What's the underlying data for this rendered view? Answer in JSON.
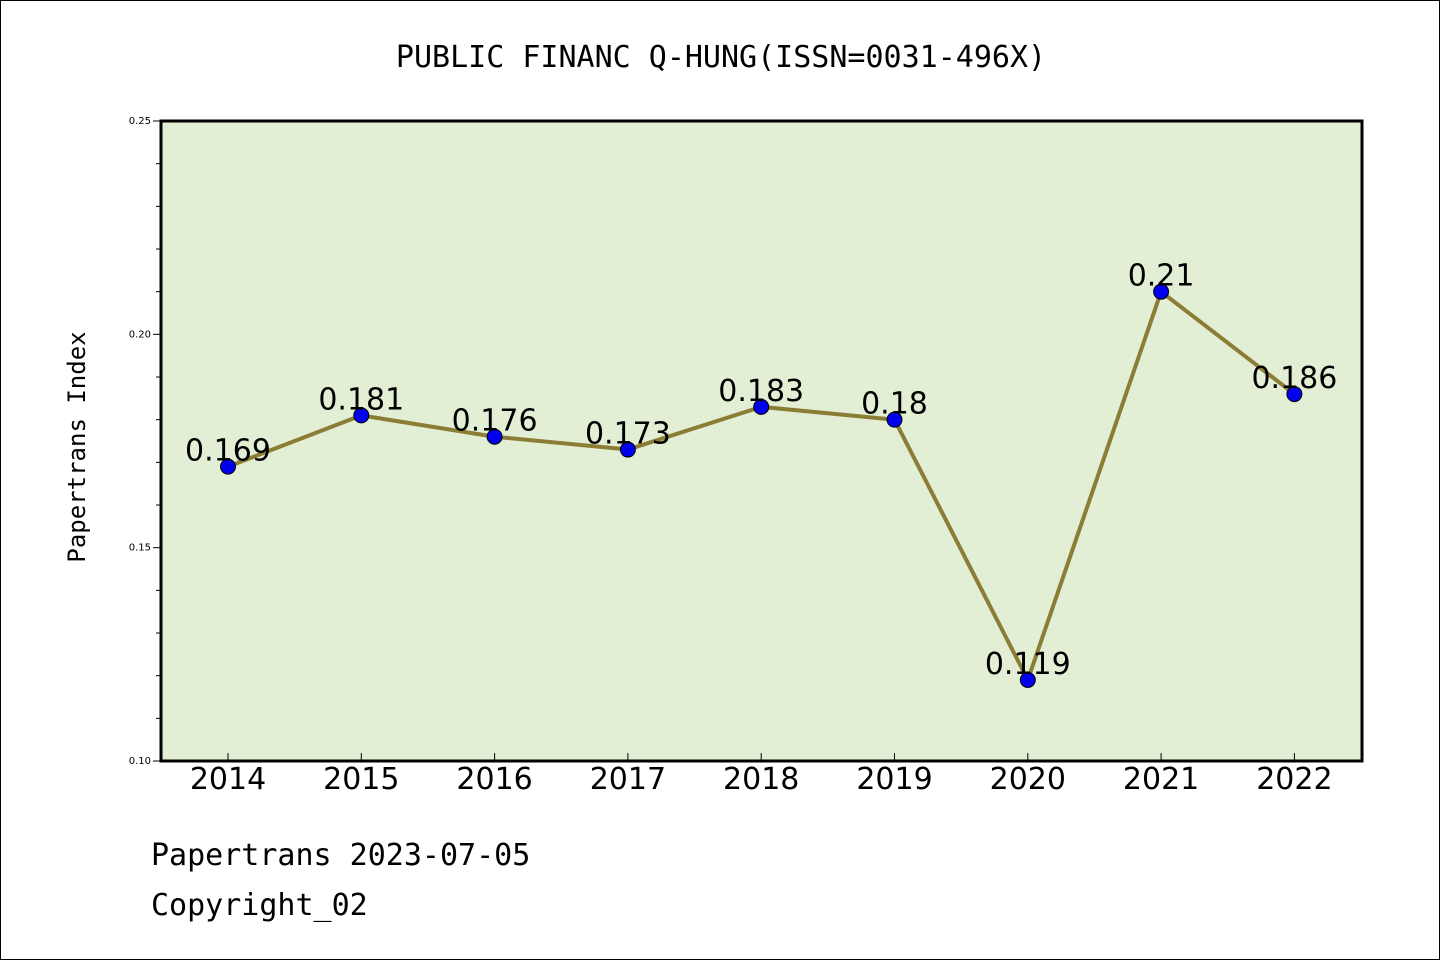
{
  "chart_data": {
    "type": "line",
    "title": "PUBLIC FINANC Q-HUNG(ISSN=0031-496X)",
    "ylabel": "Papertrans Index",
    "xlabel": "",
    "categories": [
      "2014",
      "2015",
      "2016",
      "2017",
      "2018",
      "2019",
      "2020",
      "2021",
      "2022"
    ],
    "values": [
      0.169,
      0.181,
      0.176,
      0.173,
      0.183,
      0.18,
      0.119,
      0.21,
      0.186
    ],
    "data_labels": [
      "0.169",
      "0.181",
      "0.176",
      "0.173",
      "0.183",
      "0.18",
      "0.119",
      "0.21",
      "0.186"
    ],
    "ylim": [
      0.1,
      0.25
    ],
    "yticks": [
      "0.10",
      "0.15",
      "0.20",
      "0.25"
    ],
    "grid": false,
    "colors": {
      "line": "#8b7d35",
      "marker": "#0000ee",
      "plot_background": "#e2efd5"
    }
  },
  "footer": {
    "line1": "Papertrans 2023-07-05",
    "line2": "Copyright_02"
  }
}
